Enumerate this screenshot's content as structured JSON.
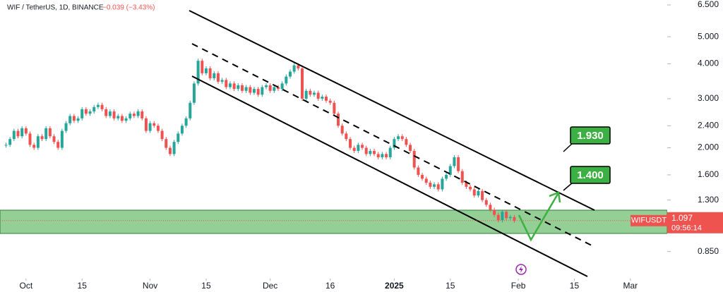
{
  "chart_data": {
    "type": "candlestick",
    "symbol": "WIF / TetherUS, 1D, BINANCE",
    "change": "−0.039 (−3.43%)",
    "ticker": "WIFUSDT",
    "last": 1.097,
    "countdown": "09:56:14",
    "annotations": [
      "1.930",
      "1.400"
    ],
    "log_scale": true,
    "up_color": "#26a69a",
    "down_color": "#ef5350",
    "close": [
      2.05,
      2.15,
      2.3,
      2.2,
      2.35,
      2.25,
      2.05,
      2.0,
      2.2,
      2.15,
      2.35,
      2.2,
      2.1,
      2.0,
      2.3,
      2.45,
      2.6,
      2.5,
      2.55,
      2.75,
      2.65,
      2.7,
      2.8,
      2.85,
      2.75,
      2.6,
      2.7,
      2.55,
      2.6,
      2.5,
      2.55,
      2.65,
      2.6,
      2.7,
      2.55,
      2.3,
      2.45,
      2.4,
      2.3,
      2.15,
      2.0,
      1.9,
      2.1,
      2.25,
      2.4,
      2.55,
      2.9,
      3.4,
      4.1,
      3.7,
      3.85,
      3.55,
      3.7,
      3.45,
      3.5,
      3.3,
      3.4,
      3.25,
      3.35,
      3.2,
      3.3,
      3.15,
      3.25,
      3.1,
      3.3,
      3.35,
      3.2,
      3.3,
      3.25,
      3.4,
      3.6,
      3.75,
      3.95,
      3.85,
      3.0,
      3.2,
      3.1,
      3.15,
      3.0,
      3.05,
      2.95,
      2.9,
      2.65,
      2.4,
      2.25,
      2.15,
      2.0,
      1.95,
      2.05,
      2.0,
      1.9,
      1.95,
      1.9,
      1.85,
      1.9,
      1.85,
      2.0,
      2.15,
      2.2,
      2.15,
      2.05,
      1.95,
      1.7,
      1.6,
      1.55,
      1.5,
      1.45,
      1.48,
      1.42,
      1.55,
      1.6,
      1.72,
      1.85,
      1.65,
      1.5,
      1.45,
      1.42,
      1.35,
      1.4,
      1.3,
      1.25,
      1.2,
      1.15,
      1.1,
      1.18,
      1.12,
      1.13,
      1.097
    ],
    "xlim": [
      -6.5,
      160.2
    ],
    "xticks": [
      {
        "value": 0,
        "label": "Oct"
      },
      {
        "value": 14,
        "label": "15"
      },
      {
        "value": 31,
        "label": "Nov"
      },
      {
        "value": 45,
        "label": "15"
      },
      {
        "value": 61,
        "label": "Dec"
      },
      {
        "value": 76,
        "label": "16"
      },
      {
        "value": 92,
        "label": "2025"
      },
      {
        "value": 106,
        "label": "15"
      },
      {
        "value": 123,
        "label": "Feb"
      },
      {
        "value": 137,
        "label": "15"
      },
      {
        "value": 151,
        "label": "Mar"
      }
    ],
    "ylim": [
      0.68,
      6.77
    ],
    "yticks": [
      {
        "value": 6.5,
        "label": "6.500"
      },
      {
        "value": 5,
        "label": "5.000"
      },
      {
        "value": 4,
        "label": "4.000"
      },
      {
        "value": 3,
        "label": "3.000"
      },
      {
        "value": 2.4,
        "label": "2.400"
      },
      {
        "value": 2,
        "label": "2.000"
      },
      {
        "value": 1.6,
        "label": "1.600"
      },
      {
        "value": 1.3,
        "label": "1.300"
      },
      {
        "value": 0.85,
        "label": "0.850"
      }
    ]
  }
}
